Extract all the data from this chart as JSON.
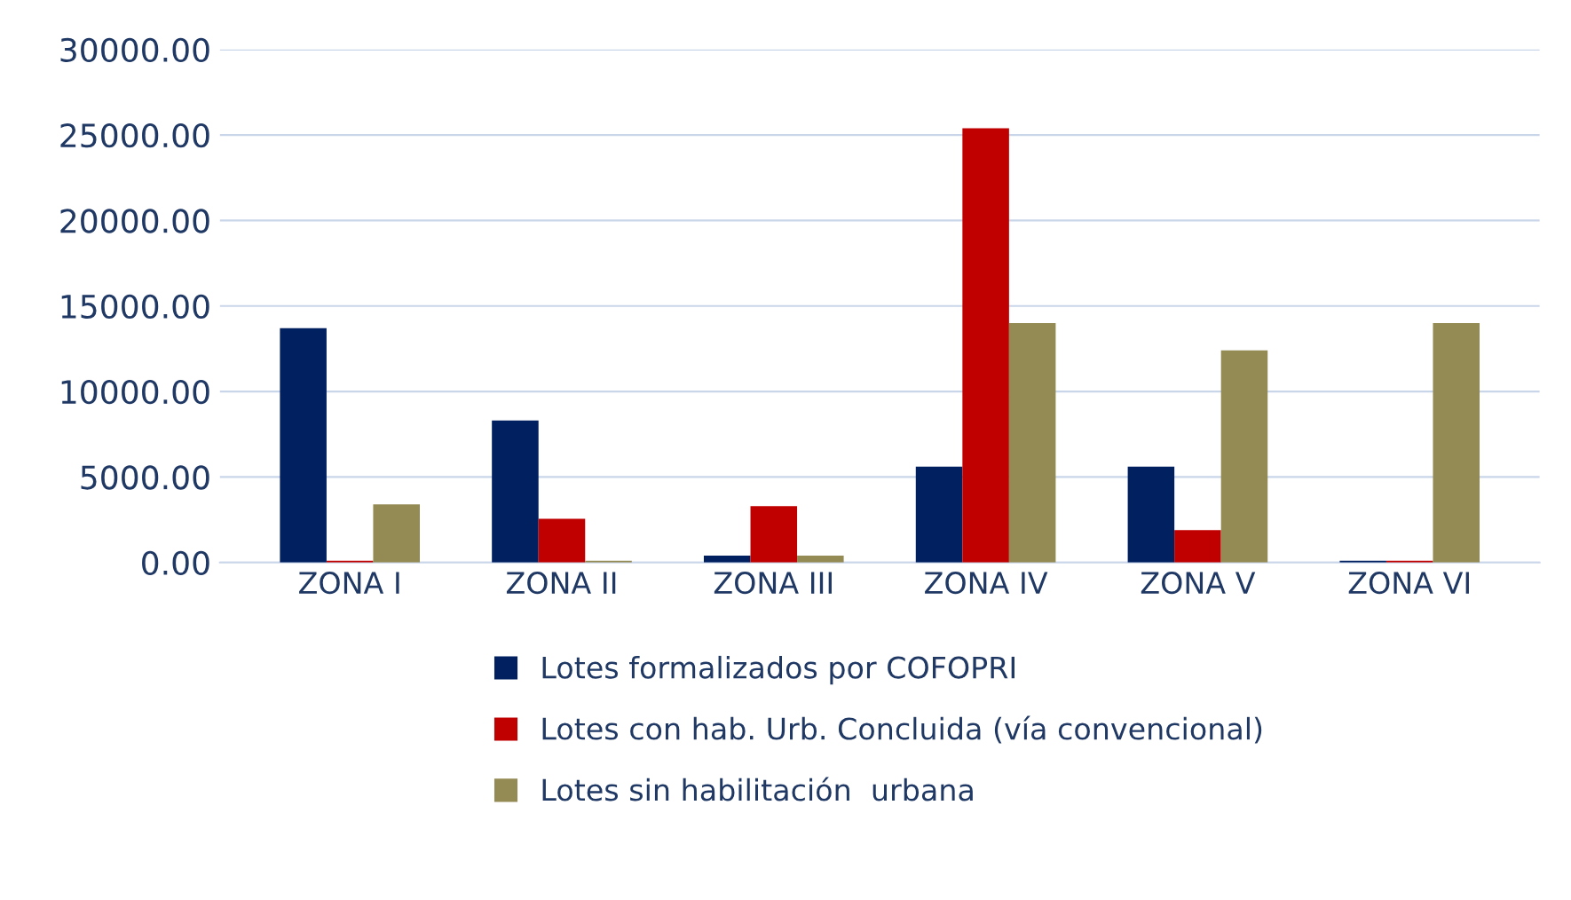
{
  "chart_data": {
    "type": "bar",
    "categories": [
      "ZONA I",
      "ZONA II",
      "ZONA III",
      "ZONA IV",
      "ZONA V",
      "ZONA VI"
    ],
    "series": [
      {
        "name": "Lotes formalizados por COFOPRI",
        "color": "#002060",
        "values": [
          13700,
          8300,
          400,
          5600,
          5600,
          100
        ]
      },
      {
        "name": "Lotes con hab. Urb. Concluida (vía convencional)",
        "color": "#c00000",
        "values": [
          100,
          2550,
          3300,
          25400,
          1900,
          100
        ]
      },
      {
        "name": "Lotes sin habilitación  urbana",
        "color": "#948a54",
        "values": [
          3400,
          100,
          400,
          14000,
          12400,
          14000
        ]
      }
    ],
    "ylim": [
      0,
      30000
    ],
    "yticks": [
      {
        "value": 0,
        "label": "0.00"
      },
      {
        "value": 5000,
        "label": "5000.00"
      },
      {
        "value": 10000,
        "label": "10000.00"
      },
      {
        "value": 15000,
        "label": "15000.00"
      },
      {
        "value": 20000,
        "label": "20000.00"
      },
      {
        "value": 25000,
        "label": "25000.00"
      },
      {
        "value": 30000,
        "label": "30000.00"
      }
    ],
    "grid": "y",
    "legend": "bottom"
  }
}
